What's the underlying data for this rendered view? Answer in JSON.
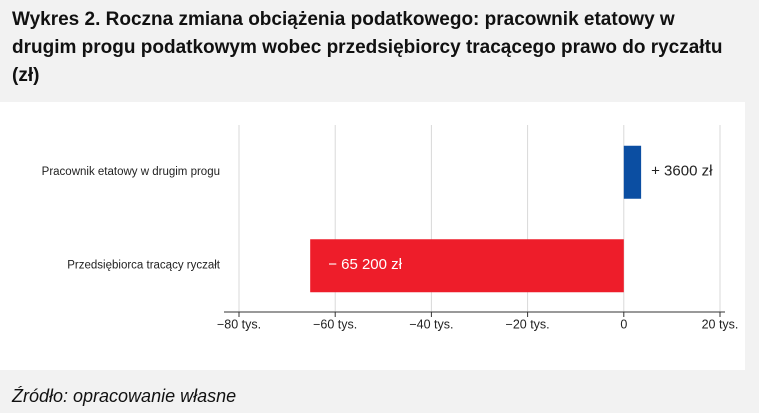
{
  "chart_data": {
    "type": "bar",
    "orientation": "horizontal",
    "title": "Wykres 2. Roczna zmiana obciążenia podatkowego: pracownik etatowy w drugim progu podatkowym wobec przedsiębiorcy tracącego prawo do ryczałtu (zł)",
    "categories": [
      "Pracownik etatowy w drugim progu",
      "Przedsiębiorca tracący ryczałt"
    ],
    "values": [
      3600,
      -65200
    ],
    "value_labels": [
      "+ 3600 zł",
      "− 65 200 zł"
    ],
    "colors": [
      "#0b4ea2",
      "#ee1d2a"
    ],
    "xlim": [
      -80000,
      20000
    ],
    "xticks": [
      {
        "value": -80000,
        "label": "−80 tys."
      },
      {
        "value": -60000,
        "label": "−60 tys."
      },
      {
        "value": -40000,
        "label": "−40 tys."
      },
      {
        "value": -20000,
        "label": "−20 tys."
      },
      0,
      {
        "value": 20000,
        "label": "20 tys."
      }
    ],
    "grid": true,
    "source": "Źródło: opracowanie własne"
  }
}
